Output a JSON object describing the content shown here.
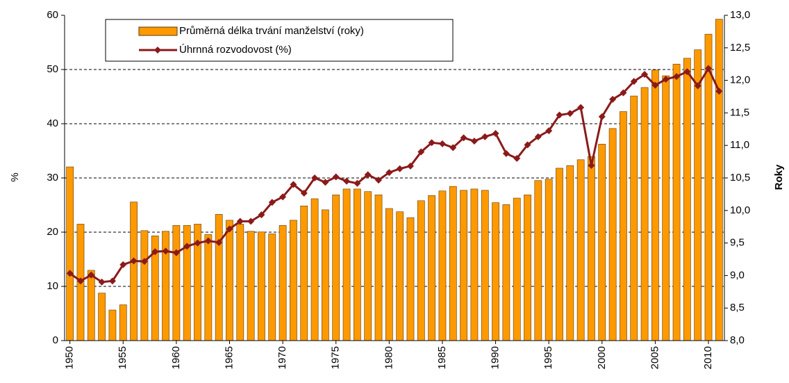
{
  "chart_data": {
    "type": "bar_line",
    "y_label": "%",
    "y2_label": "Roky",
    "x": [
      1950,
      1951,
      1952,
      1953,
      1954,
      1955,
      1956,
      1957,
      1958,
      1959,
      1960,
      1961,
      1962,
      1963,
      1964,
      1965,
      1966,
      1967,
      1968,
      1969,
      1970,
      1971,
      1972,
      1973,
      1974,
      1975,
      1976,
      1977,
      1978,
      1979,
      1980,
      1981,
      1982,
      1983,
      1984,
      1985,
      1986,
      1987,
      1988,
      1989,
      1990,
      1991,
      1992,
      1993,
      1994,
      1995,
      1996,
      1997,
      1998,
      1999,
      2000,
      2001,
      2002,
      2003,
      2004,
      2005,
      2006,
      2007,
      2008,
      2009,
      2010,
      2011
    ],
    "xlim": [
      1949.5,
      2011.5
    ],
    "xticks": [
      1950,
      1955,
      1960,
      1965,
      1970,
      1975,
      1980,
      1985,
      1990,
      1995,
      2000,
      2005,
      2010
    ],
    "ylim": [
      0,
      60
    ],
    "yticks": [
      0,
      10,
      20,
      30,
      40,
      50,
      60
    ],
    "y2lim": [
      8,
      13
    ],
    "y2ticks": [
      {
        "value": 8,
        "label": "8,0"
      },
      {
        "value": 8.5,
        "label": "8,5"
      },
      {
        "value": 9,
        "label": "9,0"
      },
      {
        "value": 9.5,
        "label": "9,5"
      },
      {
        "value": 10,
        "label": "10,0"
      },
      {
        "value": 10.5,
        "label": "10,5"
      },
      {
        "value": 11,
        "label": "11,0"
      },
      {
        "value": 11.5,
        "label": "11,5"
      },
      {
        "value": 12,
        "label": "12,0"
      },
      {
        "value": 12.5,
        "label": "12,5"
      },
      {
        "value": 13,
        "label": "13,0"
      }
    ],
    "grid": true,
    "series": [
      {
        "name": "Průměrná délka trvání manželství (roky)",
        "kind": "bar",
        "axis": "y2",
        "color": "#ff9900",
        "values": [
          10.67,
          9.79,
          9.08,
          8.73,
          8.47,
          8.55,
          10.13,
          9.69,
          9.61,
          9.68,
          9.77,
          9.77,
          9.79,
          9.63,
          9.94,
          9.85,
          9.79,
          9.68,
          9.67,
          9.64,
          9.77,
          9.85,
          10.07,
          10.18,
          10.01,
          10.24,
          10.33,
          10.33,
          10.29,
          10.24,
          10.03,
          9.98,
          9.89,
          10.15,
          10.23,
          10.3,
          10.37,
          10.31,
          10.33,
          10.31,
          10.12,
          10.09,
          10.19,
          10.24,
          10.46,
          10.48,
          10.65,
          10.69,
          10.78,
          10.83,
          11.02,
          11.26,
          11.52,
          11.76,
          11.89,
          12.16,
          12.07,
          12.25,
          12.34,
          12.47,
          12.71,
          12.94
        ]
      },
      {
        "name": "Úhrnná rozvodovost (%)",
        "kind": "line",
        "color": "#8b1a1a",
        "values": [
          12.4,
          11,
          12.1,
          10.8,
          11,
          14,
          14.7,
          14.6,
          16.4,
          16.5,
          16.2,
          17.4,
          18,
          18.4,
          18.1,
          20.6,
          22,
          22,
          23.2,
          25.5,
          26.5,
          28.8,
          27.2,
          30,
          29.2,
          30.2,
          29.4,
          29,
          30.6,
          29.6,
          31,
          31.7,
          32.2,
          34.8,
          36.5,
          36.3,
          35.6,
          37.4,
          36.8,
          37.6,
          38.2,
          34.5,
          33.6,
          36.1,
          37.6,
          38.7,
          41.6,
          41.9,
          43,
          32.3,
          41.3,
          44.5,
          45.7,
          47.8,
          49.1,
          47.1,
          48.2,
          48.7,
          49.6,
          47,
          50.2,
          46
        ]
      }
    ]
  }
}
